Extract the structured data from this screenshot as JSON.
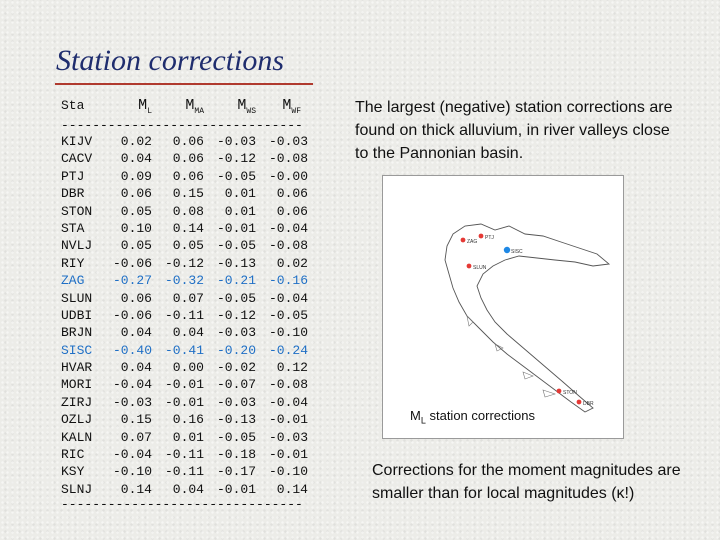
{
  "title": "Station corrections",
  "table": {
    "header": {
      "sta": "Sta",
      "ml_main": "M",
      "ml_sub": "L",
      "mma_main": "M",
      "mma_sub": "MA",
      "mws_main": "M",
      "mws_sub": "WS",
      "mwf_main": "M",
      "mwf_sub": "WF"
    },
    "rule": "----------------------------------------",
    "rows": [
      {
        "sta": "KIJV",
        "ml": "0.02",
        "mma": "0.06",
        "mws": "-0.03",
        "mwf": "-0.03"
      },
      {
        "sta": "CACV",
        "ml": "0.04",
        "mma": "0.06",
        "mws": "-0.12",
        "mwf": "-0.08"
      },
      {
        "sta": "PTJ",
        "ml": "0.09",
        "mma": "0.06",
        "mws": "-0.05",
        "mwf": "-0.00"
      },
      {
        "sta": "DBR",
        "ml": "0.06",
        "mma": "0.15",
        "mws": "0.01",
        "mwf": "0.06"
      },
      {
        "sta": "STON",
        "ml": "0.05",
        "mma": "0.08",
        "mws": "0.01",
        "mwf": "0.06"
      },
      {
        "sta": "STA",
        "ml": "0.10",
        "mma": "0.14",
        "mws": "-0.01",
        "mwf": "-0.04"
      },
      {
        "sta": "NVLJ",
        "ml": "0.05",
        "mma": "0.05",
        "mws": "-0.05",
        "mwf": "-0.08"
      },
      {
        "sta": "RIY",
        "ml": "-0.06",
        "mma": "-0.12",
        "mws": "-0.13",
        "mwf": "0.02"
      },
      {
        "sta": "ZAG",
        "ml": "-0.27",
        "mma": "-0.32",
        "mws": "-0.21",
        "mwf": "-0.16"
      },
      {
        "sta": "SLUN",
        "ml": "0.06",
        "mma": "0.07",
        "mws": "-0.05",
        "mwf": "-0.04"
      },
      {
        "sta": "UDBI",
        "ml": "-0.06",
        "mma": "-0.11",
        "mws": "-0.12",
        "mwf": "-0.05"
      },
      {
        "sta": "BRJN",
        "ml": "0.04",
        "mma": "0.04",
        "mws": "-0.03",
        "mwf": "-0.10"
      },
      {
        "sta": "SISC",
        "ml": "-0.40",
        "mma": "-0.41",
        "mws": "-0.20",
        "mwf": "-0.24"
      },
      {
        "sta": "HVAR",
        "ml": "0.04",
        "mma": "0.00",
        "mws": "-0.02",
        "mwf": "0.12"
      },
      {
        "sta": "MORI",
        "ml": "-0.04",
        "mma": "-0.01",
        "mws": "-0.07",
        "mwf": "-0.08"
      },
      {
        "sta": "ZIRJ",
        "ml": "-0.03",
        "mma": "-0.01",
        "mws": "-0.03",
        "mwf": "-0.04"
      },
      {
        "sta": "OZLJ",
        "ml": "0.15",
        "mma": "0.16",
        "mws": "-0.13",
        "mwf": "-0.01"
      },
      {
        "sta": "KALN",
        "ml": "0.07",
        "mma": "0.01",
        "mws": "-0.05",
        "mwf": "-0.03"
      },
      {
        "sta": "RIC",
        "ml": "-0.04",
        "mma": "-0.11",
        "mws": "-0.18",
        "mwf": "-0.01"
      },
      {
        "sta": "KSY",
        "ml": "-0.10",
        "mma": "-0.11",
        "mws": "-0.17",
        "mwf": "-0.10"
      },
      {
        "sta": "SLNJ",
        "ml": "0.14",
        "mma": "0.04",
        "mws": "-0.01",
        "mwf": "0.14"
      }
    ],
    "highlight_rows": [
      "ZAG",
      "SISC"
    ],
    "highlight_color": "#1f6fc5"
  },
  "notes_top": "The largest (negative) station corrections are found on thick alluvium, in river valleys close to the Pannonian basin.",
  "map": {
    "caption_main": "M",
    "caption_sub": "L",
    "caption_rest": " station corrections",
    "stations": [
      {
        "label": "ZAG",
        "color": "#e53935"
      },
      {
        "label": "SISC",
        "color": "#1e88e5"
      },
      {
        "label": "PTJ",
        "color": "#e53935"
      },
      {
        "label": "SLUN",
        "color": "#e53935"
      },
      {
        "label": "STON",
        "color": "#e53935"
      },
      {
        "label": "DBR",
        "color": "#e53935"
      }
    ]
  },
  "notes_bottom": "Corrections for the moment magnitudes are smaller than for local magnitudes (κ!)"
}
